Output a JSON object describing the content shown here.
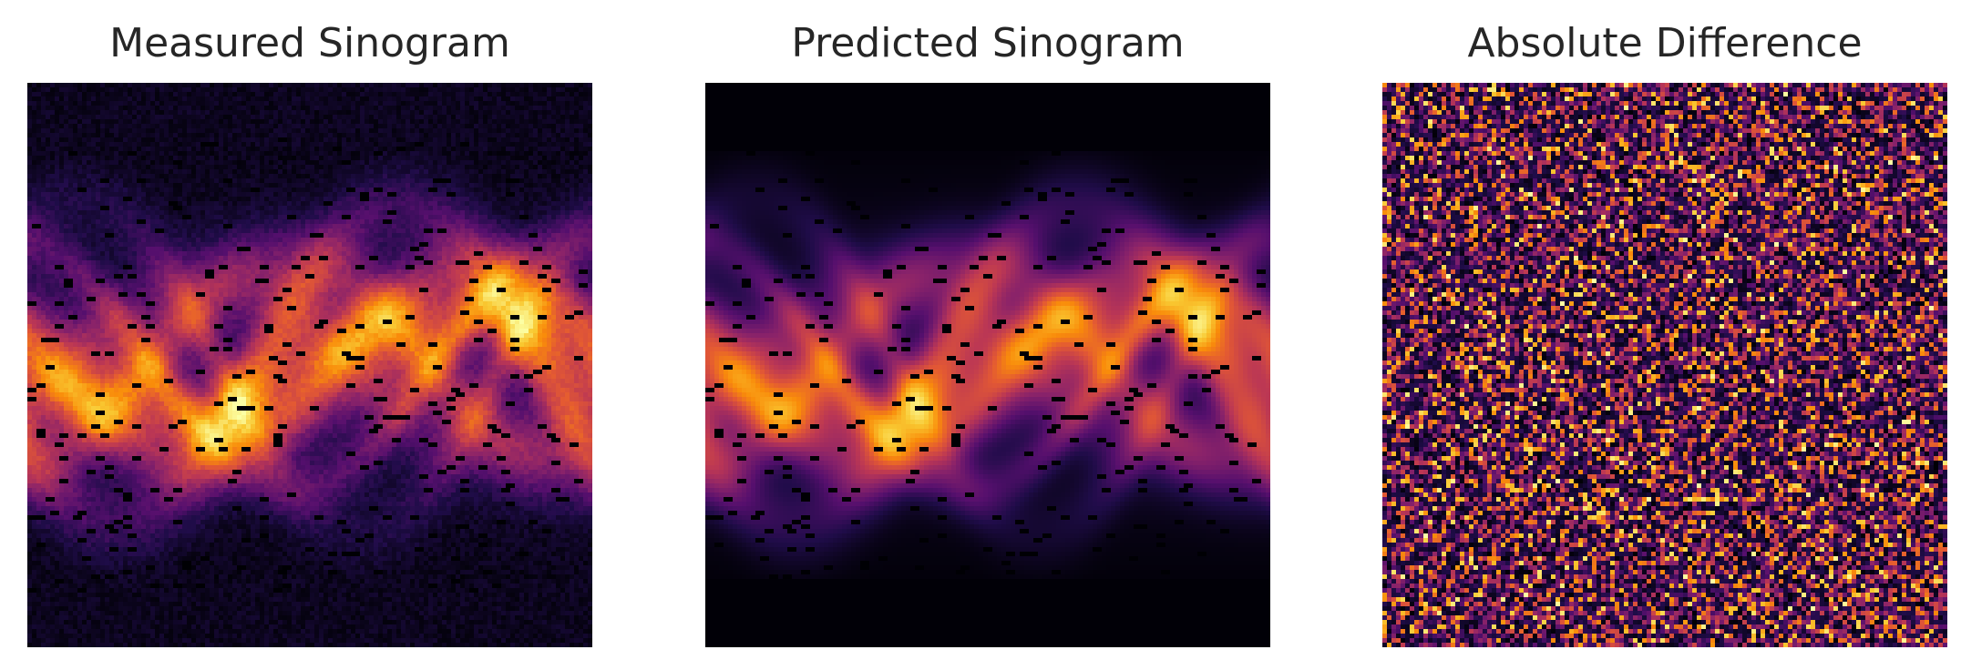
{
  "figure": {
    "panels": [
      {
        "title": "Measured Sinogram",
        "image": "measured-sinogram",
        "colormap": "inferno"
      },
      {
        "title": "Predicted Sinogram",
        "image": "predicted-sinogram",
        "colormap": "inferno"
      },
      {
        "title": "Absolute Difference",
        "image": "absolute-difference",
        "colormap": "inferno"
      }
    ]
  }
}
